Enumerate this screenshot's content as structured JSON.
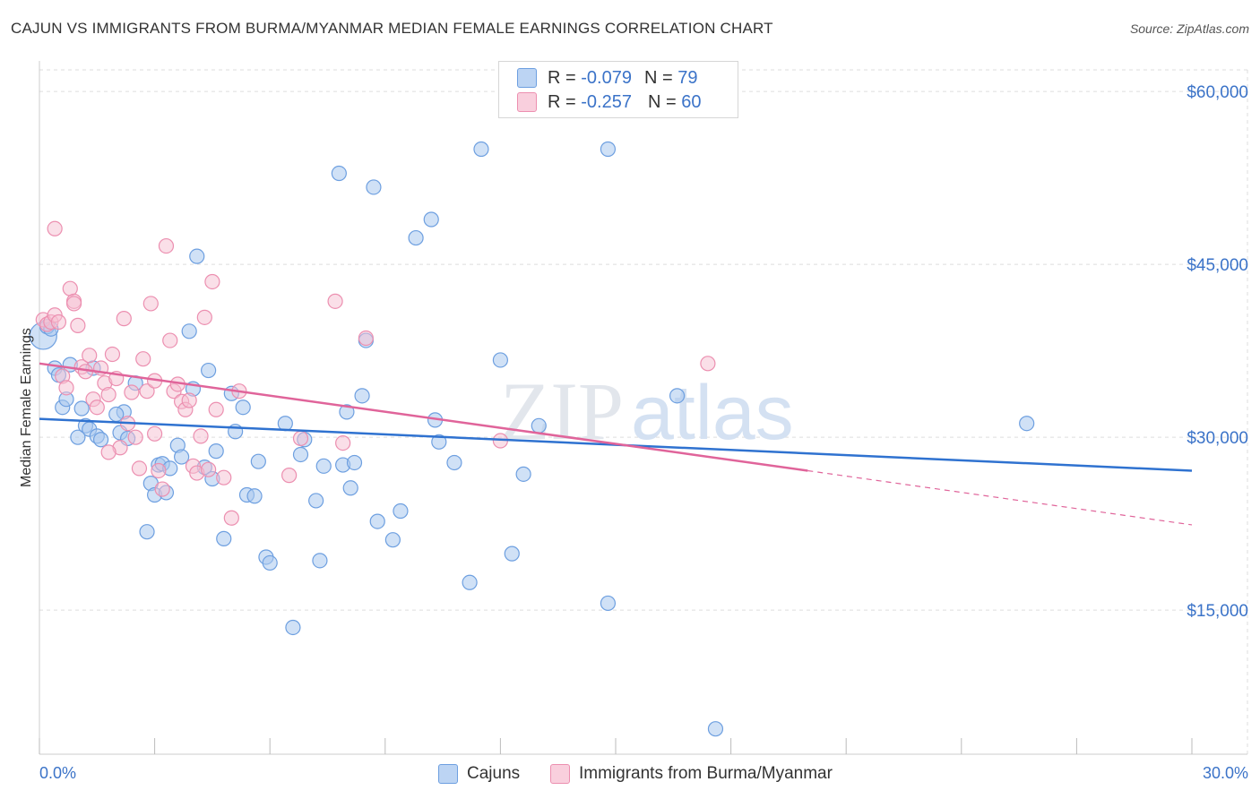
{
  "header": {
    "title": "CAJUN VS IMMIGRANTS FROM BURMA/MYANMAR MEDIAN FEMALE EARNINGS CORRELATION CHART",
    "source": "Source: ZipAtlas.com"
  },
  "legend": {
    "r_label": "R =",
    "n_label": "N =",
    "cajun_r": "-0.079",
    "cajun_n": "79",
    "burma_r": "-0.257",
    "burma_n": "60"
  },
  "bottom_legend": {
    "cajun": "Cajuns",
    "burma": "Immigrants from Burma/Myanmar"
  },
  "watermark": {
    "zip": "ZIP",
    "atlas": "atlas"
  },
  "colors": {
    "cajun_fill": "#a9c8ef",
    "cajun_stroke": "#6d9fe0",
    "cajun_line": "#2f72d0",
    "burma_fill": "#f6c0d2",
    "burma_stroke": "#ec8fb0",
    "burma_line": "#e0649a",
    "axis_text": "#3b73c8",
    "grid": "#dddddd"
  },
  "chart_data": {
    "type": "scatter",
    "title": "CAJUN VS IMMIGRANTS FROM BURMA/MYANMAR MEDIAN FEMALE EARNINGS CORRELATION CHART",
    "xlabel": "",
    "ylabel": "Median Female Earnings",
    "xlim": [
      0,
      30
    ],
    "ylim": [
      2500,
      62500
    ],
    "x_tick_labels": [
      "0.0%",
      "30.0%"
    ],
    "y_ticks": [
      15000,
      30000,
      45000,
      60000
    ],
    "y_tick_labels": [
      "$15,000",
      "$30,000",
      "$45,000",
      "$60,000"
    ],
    "grid": true,
    "legend_position": "top-center",
    "series": [
      {
        "name": "Cajuns",
        "r": -0.079,
        "n": 79,
        "trend": {
          "x": [
            0,
            30
          ],
          "y": [
            31600,
            27100
          ]
        },
        "points": [
          [
            0.1,
            38800
          ],
          [
            0.2,
            39600
          ],
          [
            0.4,
            36000
          ],
          [
            0.5,
            35400
          ],
          [
            0.6,
            32600
          ],
          [
            0.7,
            33300
          ],
          [
            0.8,
            36300
          ],
          [
            1.0,
            30000
          ],
          [
            1.1,
            32500
          ],
          [
            1.2,
            31000
          ],
          [
            1.3,
            30700
          ],
          [
            1.5,
            30100
          ],
          [
            1.6,
            29800
          ],
          [
            1.4,
            36000
          ],
          [
            2.1,
            30400
          ],
          [
            2.2,
            32200
          ],
          [
            2.3,
            29900
          ],
          [
            2.5,
            34700
          ],
          [
            2.8,
            21800
          ],
          [
            2.9,
            26000
          ],
          [
            3.0,
            25000
          ],
          [
            3.1,
            27600
          ],
          [
            3.2,
            27700
          ],
          [
            3.4,
            27300
          ],
          [
            3.6,
            29300
          ],
          [
            3.7,
            28300
          ],
          [
            3.9,
            39200
          ],
          [
            4.0,
            34200
          ],
          [
            4.1,
            45700
          ],
          [
            4.3,
            27400
          ],
          [
            4.4,
            35800
          ],
          [
            4.5,
            26400
          ],
          [
            4.6,
            28800
          ],
          [
            4.8,
            21200
          ],
          [
            5.0,
            33800
          ],
          [
            5.1,
            30500
          ],
          [
            5.3,
            32600
          ],
          [
            5.4,
            25000
          ],
          [
            5.6,
            24900
          ],
          [
            5.7,
            27900
          ],
          [
            5.9,
            19600
          ],
          [
            6.0,
            19100
          ],
          [
            6.4,
            31200
          ],
          [
            6.6,
            13500
          ],
          [
            6.8,
            28500
          ],
          [
            6.9,
            29800
          ],
          [
            7.2,
            24500
          ],
          [
            7.3,
            19300
          ],
          [
            7.4,
            27500
          ],
          [
            7.8,
            52900
          ],
          [
            7.9,
            27600
          ],
          [
            8.0,
            32200
          ],
          [
            8.1,
            25600
          ],
          [
            8.2,
            27800
          ],
          [
            8.4,
            33600
          ],
          [
            8.5,
            38400
          ],
          [
            8.7,
            51700
          ],
          [
            8.8,
            22700
          ],
          [
            9.2,
            21100
          ],
          [
            9.4,
            23600
          ],
          [
            9.8,
            47300
          ],
          [
            10.2,
            48900
          ],
          [
            10.3,
            31500
          ],
          [
            10.4,
            29600
          ],
          [
            10.8,
            27800
          ],
          [
            11.2,
            17400
          ],
          [
            11.5,
            55000
          ],
          [
            12.0,
            36700
          ],
          [
            12.3,
            19900
          ],
          [
            12.6,
            26800
          ],
          [
            13.0,
            31000
          ],
          [
            14.8,
            55000
          ],
          [
            14.8,
            15600
          ],
          [
            16.6,
            33600
          ],
          [
            17.6,
            4700
          ],
          [
            25.7,
            31200
          ],
          [
            0.3,
            39400
          ],
          [
            2.0,
            32000
          ],
          [
            3.3,
            25200
          ]
        ]
      },
      {
        "name": "Immigrants from Burma/Myanmar",
        "r": -0.257,
        "n": 60,
        "trend": {
          "x": [
            0,
            20
          ],
          "y": [
            36400,
            27100
          ]
        },
        "trend_dashed": {
          "x": [
            20,
            30
          ],
          "y": [
            27100,
            22400
          ]
        },
        "points": [
          [
            0.1,
            40200
          ],
          [
            0.2,
            39800
          ],
          [
            0.3,
            40000
          ],
          [
            0.4,
            40600
          ],
          [
            0.4,
            48100
          ],
          [
            0.6,
            35300
          ],
          [
            0.7,
            34300
          ],
          [
            0.8,
            42900
          ],
          [
            0.9,
            41800
          ],
          [
            1.0,
            39700
          ],
          [
            1.1,
            36100
          ],
          [
            1.2,
            35700
          ],
          [
            1.3,
            37100
          ],
          [
            1.4,
            33300
          ],
          [
            1.5,
            32600
          ],
          [
            1.6,
            36000
          ],
          [
            1.7,
            34700
          ],
          [
            1.8,
            33700
          ],
          [
            1.9,
            37200
          ],
          [
            2.0,
            35100
          ],
          [
            2.1,
            29100
          ],
          [
            2.2,
            40300
          ],
          [
            2.3,
            31200
          ],
          [
            2.4,
            33900
          ],
          [
            2.5,
            30000
          ],
          [
            2.6,
            27300
          ],
          [
            2.7,
            36800
          ],
          [
            2.8,
            34000
          ],
          [
            2.9,
            41600
          ],
          [
            3.0,
            30300
          ],
          [
            3.1,
            27100
          ],
          [
            3.2,
            25500
          ],
          [
            3.3,
            46600
          ],
          [
            3.4,
            38400
          ],
          [
            3.5,
            34000
          ],
          [
            3.6,
            34600
          ],
          [
            3.7,
            33100
          ],
          [
            3.8,
            32400
          ],
          [
            3.9,
            33200
          ],
          [
            4.0,
            27500
          ],
          [
            4.1,
            26900
          ],
          [
            4.2,
            30100
          ],
          [
            4.3,
            40400
          ],
          [
            4.4,
            27200
          ],
          [
            4.5,
            43500
          ],
          [
            4.6,
            32400
          ],
          [
            4.8,
            26500
          ],
          [
            5.0,
            23000
          ],
          [
            5.2,
            34000
          ],
          [
            6.5,
            26700
          ],
          [
            6.8,
            29900
          ],
          [
            7.7,
            41800
          ],
          [
            7.9,
            29500
          ],
          [
            8.5,
            38600
          ],
          [
            12.0,
            29700
          ],
          [
            17.4,
            36400
          ],
          [
            0.5,
            40000
          ],
          [
            1.8,
            28700
          ],
          [
            3.0,
            34900
          ],
          [
            0.9,
            41600
          ]
        ]
      }
    ]
  }
}
